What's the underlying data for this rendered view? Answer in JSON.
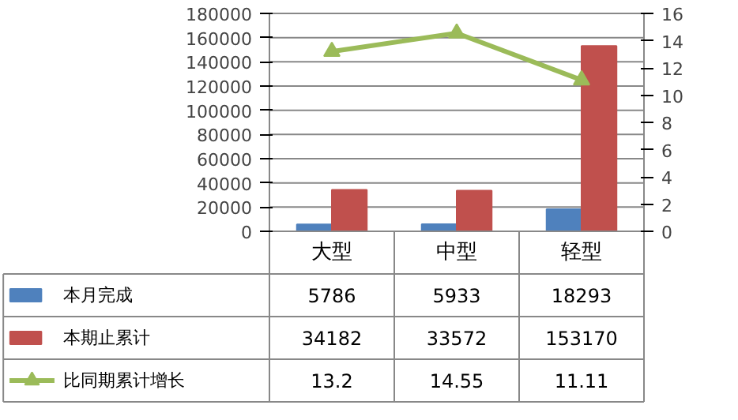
{
  "chart_data": {
    "type": "bar",
    "categories": [
      "大型",
      "中型",
      "轻型"
    ],
    "series": [
      {
        "name": "本月完成",
        "color": "#4f81bd",
        "values": [
          5786,
          5933,
          18293
        ]
      },
      {
        "name": "本期止累计",
        "color": "#c0504d",
        "values": [
          34182,
          33572,
          153170
        ]
      },
      {
        "name": "比同期累计增长",
        "color": "#9bbb59",
        "type": "line",
        "axis": "y2",
        "marker": "triangle",
        "values": [
          13.2,
          14.55,
          11.11
        ]
      }
    ],
    "ylim": [
      0,
      180000
    ],
    "yticks": [
      0,
      20000,
      40000,
      60000,
      80000,
      100000,
      120000,
      140000,
      160000,
      180000
    ],
    "y2lim": [
      0,
      16
    ],
    "y2ticks": [
      0,
      2,
      4,
      6,
      8,
      10,
      12,
      14,
      16
    ],
    "grid": "y",
    "legend": "bottom",
    "data_labels": true
  }
}
